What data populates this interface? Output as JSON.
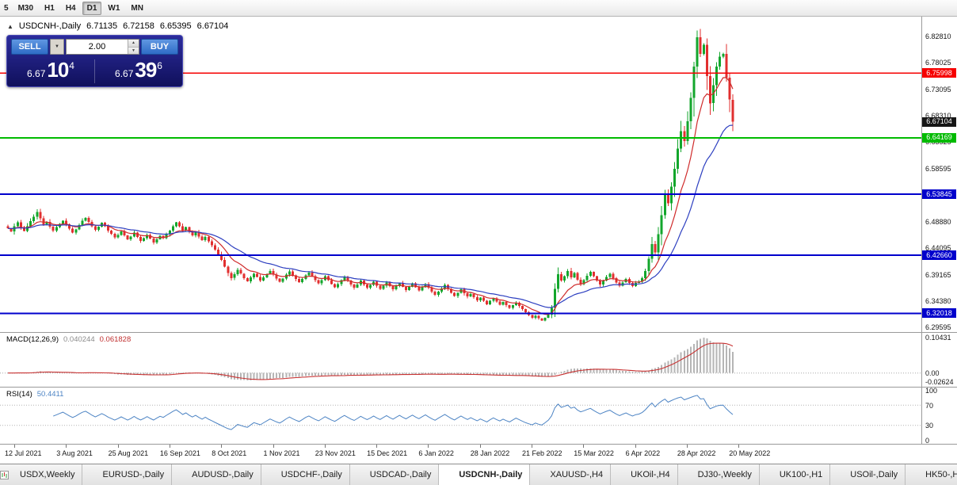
{
  "toolbar": {
    "buttons": [
      "5",
      "M30",
      "H1",
      "H4",
      "D1",
      "W1",
      "MN"
    ],
    "active": "D1"
  },
  "chart_header": {
    "collapse_icon": "▲",
    "symbol": "USDCNH-,Daily",
    "open": "6.71135",
    "high": "6.72158",
    "low": "6.65395",
    "close": "6.67104"
  },
  "trade_panel": {
    "sell_label": "SELL",
    "buy_label": "BUY",
    "volume": "2.00",
    "bid": {
      "main": "6.67",
      "big": "10",
      "sup": "4"
    },
    "ask": {
      "main": "6.67",
      "big": "39",
      "sup": "6"
    }
  },
  "colors": {
    "candle_up": "#13a62c",
    "candle_down": "#e12f2f",
    "ma_fast": "#cf2b2b",
    "ma_slow": "#2d3fc0",
    "macd_hist": "#b5b5b5",
    "macd_signal": "#c83232",
    "rsi_line": "#4d84c4",
    "level_red": "#f60000",
    "level_green": "#00bb00",
    "level_blue": "#0000cc",
    "bid_label_bg": "#161616"
  },
  "price_axis": {
    "ticks": [
      "6.82810",
      "6.78025",
      "6.73095",
      "6.68310",
      "6.63525",
      "6.58595",
      "6.48880",
      "6.44095",
      "6.39165",
      "6.34380",
      "6.29595"
    ],
    "levels": [
      {
        "value": 6.75998,
        "label": "6.75998",
        "color": "#f60000",
        "width": 1.4
      },
      {
        "value": 6.64169,
        "label": "6.64169",
        "color": "#00bb00",
        "width": 2
      },
      {
        "value": 6.53845,
        "label": "6.53845",
        "color": "#0000cc",
        "width": 2
      },
      {
        "value": 6.4266,
        "label": "6.42660",
        "color": "#0000cc",
        "width": 2
      },
      {
        "value": 6.32018,
        "label": "6.32018",
        "color": "#0000cc",
        "width": 2
      }
    ],
    "current": {
      "value": 6.67104,
      "label": "6.67104",
      "bg": "#161616"
    }
  },
  "x_axis": {
    "labels": [
      "12 Jul 2021",
      "3 Aug 2021",
      "25 Aug 2021",
      "16 Sep 2021",
      "8 Oct 2021",
      "1 Nov 2021",
      "23 Nov 2021",
      "15 Dec 2021",
      "6 Jan 2022",
      "28 Jan 2022",
      "21 Feb 2022",
      "15 Mar 2022",
      "6 Apr 2022",
      "28 Apr 2022",
      "20 May 2022"
    ]
  },
  "macd_panel": {
    "title": "MACD(12,26,9)",
    "main_value": "0.040244",
    "signal_value": "0.061828",
    "axis_labels": [
      "0.10431",
      "0.00",
      "-0.02624"
    ],
    "axis_values": [
      0.10431,
      0,
      -0.02624
    ]
  },
  "rsi_panel": {
    "title": "RSI(14)",
    "value": "50.4411",
    "axis_labels": [
      "100",
      "70",
      "30",
      "0"
    ],
    "axis_values": [
      100,
      70,
      30,
      0
    ],
    "levels": [
      70,
      30
    ]
  },
  "tabs": {
    "items": [
      "USDX,Weekly",
      "EURUSD-,Daily",
      "AUDUSD-,Daily",
      "USDCHF-,Daily",
      "USDCAD-,Daily",
      "USDCNH-,Daily",
      "XAUUSD-,H4",
      "UKOil-,H4",
      "DJ30-,Weekly",
      "UK100-,H1",
      "USOil-,Daily",
      "HK50-,H1"
    ],
    "active_index": 5
  },
  "chart_data": {
    "type": "candlestick",
    "symbol": "USDCNH",
    "timeframe": "Daily",
    "title": "USDCNH-,Daily",
    "y_range": [
      6.286,
      6.8635
    ],
    "x_labels": [
      "12 Jul 2021",
      "3 Aug 2021",
      "25 Aug 2021",
      "16 Sep 2021",
      "8 Oct 2021",
      "1 Nov 2021",
      "23 Nov 2021",
      "15 Dec 2021",
      "6 Jan 2022",
      "28 Jan 2022",
      "21 Feb 2022",
      "15 Mar 2022",
      "6 Apr 2022",
      "28 Apr 2022",
      "20 May 2022"
    ],
    "horizontal_levels": [
      6.75998,
      6.64169,
      6.53845,
      6.4266,
      6.32018
    ],
    "current_bid": 6.67104,
    "current_ask": 6.67396,
    "peak_high": 6.838,
    "last_candle": {
      "open": 6.71135,
      "high": 6.72158,
      "low": 6.65395,
      "close": 6.67104
    },
    "moving_averages": [
      {
        "period": 10,
        "color": "#cf2b2b"
      },
      {
        "period": 26,
        "color": "#2d3fc0"
      }
    ],
    "closes": [
      6.476,
      6.47,
      6.48,
      6.487,
      6.478,
      6.471,
      6.48,
      6.489,
      6.497,
      6.506,
      6.494,
      6.483,
      6.488,
      6.479,
      6.472,
      6.478,
      6.484,
      6.49,
      6.483,
      6.475,
      6.468,
      6.474,
      6.482,
      6.49,
      6.495,
      6.488,
      6.48,
      6.473,
      6.479,
      6.486,
      6.48,
      6.472,
      6.466,
      6.459,
      6.464,
      6.47,
      6.463,
      6.456,
      6.461,
      6.468,
      6.46,
      6.453,
      6.458,
      6.464,
      6.457,
      6.45,
      6.456,
      6.462,
      6.458,
      6.465,
      6.472,
      6.48,
      6.487,
      6.48,
      6.472,
      6.478,
      6.47,
      6.463,
      6.469,
      6.461,
      6.454,
      6.46,
      6.452,
      6.445,
      6.437,
      6.428,
      6.418,
      6.406,
      6.394,
      6.385,
      6.392,
      6.4,
      6.393,
      6.385,
      6.379,
      6.386,
      6.393,
      6.387,
      6.38,
      6.386,
      6.392,
      6.398,
      6.391,
      6.384,
      6.378,
      6.384,
      6.391,
      6.397,
      6.39,
      6.383,
      6.377,
      6.383,
      6.39,
      6.395,
      6.388,
      6.381,
      6.375,
      6.381,
      6.388,
      6.381,
      6.374,
      6.368,
      6.374,
      6.381,
      6.387,
      6.38,
      6.373,
      6.367,
      6.373,
      6.38,
      6.373,
      6.367,
      6.372,
      6.378,
      6.371,
      6.365,
      6.371,
      6.377,
      6.37,
      6.364,
      6.37,
      6.376,
      6.369,
      6.363,
      6.369,
      6.375,
      6.368,
      6.362,
      6.368,
      6.374,
      6.367,
      6.36,
      6.354,
      6.36,
      6.366,
      6.372,
      6.365,
      6.358,
      6.352,
      6.358,
      6.364,
      6.357,
      6.351,
      6.356,
      6.35,
      6.344,
      6.349,
      6.343,
      6.337,
      6.343,
      6.348,
      6.342,
      6.336,
      6.341,
      6.335,
      6.33,
      6.335,
      6.34,
      6.334,
      6.328,
      6.322,
      6.317,
      6.312,
      6.316,
      6.311,
      6.307,
      6.312,
      6.318,
      6.33,
      6.365,
      6.392,
      6.38,
      6.388,
      6.398,
      6.386,
      6.394,
      6.382,
      6.374,
      6.381,
      6.389,
      6.396,
      6.388,
      6.38,
      6.373,
      6.38,
      6.387,
      6.393,
      6.385,
      6.377,
      6.371,
      6.377,
      6.383,
      6.376,
      6.37,
      6.376,
      6.378,
      6.385,
      6.398,
      6.42,
      6.447,
      6.432,
      6.465,
      6.5,
      6.538,
      6.522,
      6.552,
      6.585,
      6.622,
      6.654,
      6.636,
      6.672,
      6.715,
      6.772,
      6.826,
      6.795,
      6.812,
      6.755,
      6.705,
      6.738,
      6.772,
      6.79,
      6.795,
      6.752,
      6.712,
      6.67104
    ],
    "indicators": [
      {
        "name": "MACD",
        "params": [
          12,
          26,
          9
        ],
        "last_main": 0.040244,
        "last_signal": 0.061828,
        "axis_range": [
          -0.038,
          0.118
        ]
      },
      {
        "name": "RSI",
        "params": [
          14
        ],
        "last": 50.4411,
        "axis_range": [
          0,
          100
        ],
        "levels": [
          70,
          30
        ]
      }
    ]
  }
}
